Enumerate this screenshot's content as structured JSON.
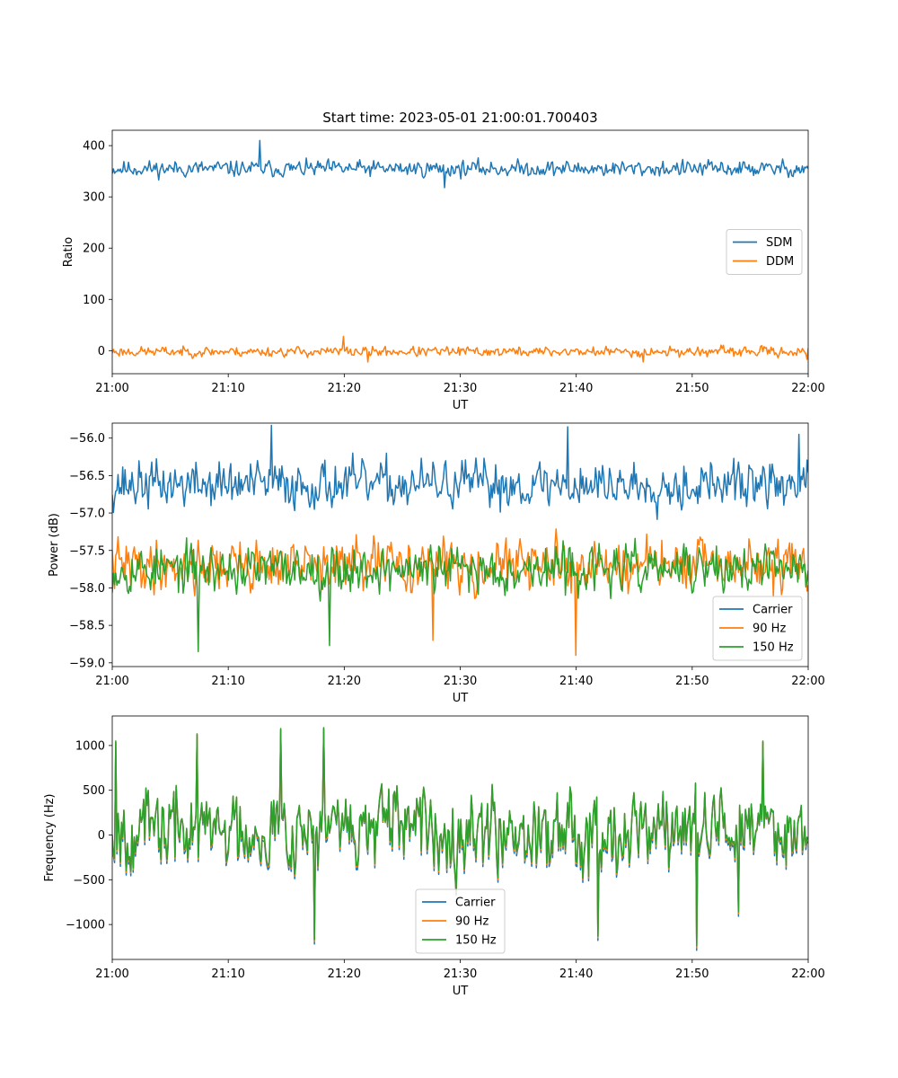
{
  "figure": {
    "title": "Start time: 2023-05-01 21:00:01.700403"
  },
  "chart_data": [
    {
      "type": "line",
      "title": "Start time: 2023-05-01 21:00:01.700403",
      "xlabel": "UT",
      "ylabel": "Ratio",
      "xlim": [
        "21:00",
        "22:00"
      ],
      "ylim": [
        -45,
        430
      ],
      "x_ticks": [
        "21:00",
        "21:10",
        "21:20",
        "21:30",
        "21:40",
        "21:50",
        "22:00"
      ],
      "y_ticks": [
        0,
        100,
        200,
        300,
        400
      ],
      "y_tick_labels": [
        "0",
        "100",
        "200",
        "300",
        "400"
      ],
      "legend_position": "center-right",
      "grid": false,
      "series": [
        {
          "name": "SDM",
          "color": "#1f77b4",
          "mean": 355,
          "amplitude": 13,
          "seed": 11,
          "spikes": [
            [
              12.7,
              410
            ],
            [
              28.6,
              318
            ],
            [
              56.2,
              352
            ]
          ]
        },
        {
          "name": "DDM",
          "color": "#ff7f0e",
          "mean": -2,
          "amplitude": 8,
          "seed": 23,
          "spikes": [
            [
              19.9,
              28
            ],
            [
              22.0,
              -22
            ],
            [
              45.8,
              -22
            ],
            [
              59.9,
              -17
            ]
          ]
        }
      ]
    },
    {
      "type": "line",
      "title": "",
      "xlabel": "UT",
      "ylabel": "Power (dB)",
      "xlim": [
        "21:00",
        "22:00"
      ],
      "ylim": [
        -59.05,
        -55.8
      ],
      "x_ticks": [
        "21:00",
        "21:10",
        "21:20",
        "21:30",
        "21:40",
        "21:50",
        "22:00"
      ],
      "y_ticks": [
        -59.0,
        -58.5,
        -58.0,
        -57.5,
        -57.0,
        -56.5,
        -56.0
      ],
      "y_tick_labels": [
        "−59.0",
        "−58.5",
        "−58.0",
        "−57.5",
        "−57.0",
        "−56.5",
        "−56.0"
      ],
      "legend_position": "lower-right",
      "grid": false,
      "series": [
        {
          "name": "Carrier",
          "color": "#1f77b4",
          "mean": -56.62,
          "amplitude": 0.26,
          "seed": 37,
          "spikes": [
            [
              13.7,
              -55.83
            ],
            [
              39.3,
              -55.85
            ],
            [
              59.2,
              -55.95
            ]
          ]
        },
        {
          "name": "90 Hz",
          "color": "#ff7f0e",
          "mean": -57.7,
          "amplitude": 0.28,
          "seed": 41,
          "spikes": [
            [
              40.0,
              -58.9
            ],
            [
              27.6,
              -58.7
            ]
          ]
        },
        {
          "name": "150 Hz",
          "color": "#2ca02c",
          "mean": -57.75,
          "amplitude": 0.26,
          "seed": 53,
          "spikes": [
            [
              7.4,
              -58.85
            ],
            [
              18.7,
              -58.77
            ]
          ]
        }
      ]
    },
    {
      "type": "line",
      "title": "",
      "xlabel": "UT",
      "ylabel": "Frequency (Hz)",
      "xlim": [
        "21:00",
        "22:00"
      ],
      "ylim": [
        -1390,
        1330
      ],
      "x_ticks": [
        "21:00",
        "21:10",
        "21:20",
        "21:30",
        "21:40",
        "21:50",
        "22:00"
      ],
      "y_ticks": [
        -1000,
        -500,
        0,
        500,
        1000
      ],
      "y_tick_labels": [
        "−1000",
        "−500",
        "0",
        "500",
        "1000"
      ],
      "legend_position": "lower-center",
      "grid": false,
      "series": [
        {
          "name": "Carrier",
          "color": "#1f77b4",
          "offset": -40
        },
        {
          "name": "90 Hz",
          "color": "#ff7f0e",
          "offset": -15
        },
        {
          "name": "150 Hz",
          "color": "#2ca02c",
          "offset": 0
        }
      ],
      "base_signal": {
        "mean": 80,
        "amplitude": 360,
        "seed": 67,
        "spikes": [
          [
            0.35,
            1050
          ],
          [
            7.3,
            1130
          ],
          [
            14.5,
            1190
          ],
          [
            17.4,
            -1170
          ],
          [
            18.2,
            1200
          ],
          [
            41.9,
            -1130
          ],
          [
            50.4,
            -1240
          ],
          [
            54.0,
            -860
          ],
          [
            56.1,
            1050
          ]
        ]
      }
    }
  ]
}
